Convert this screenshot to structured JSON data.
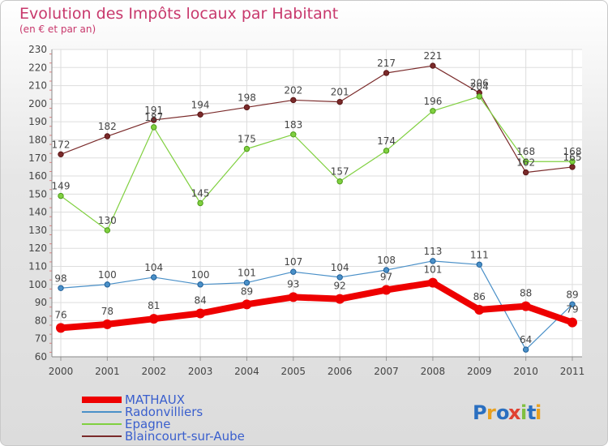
{
  "chart_data": {
    "type": "line",
    "title": "Evolution des Impôts locaux par Habitant",
    "subtitle": "(en € et par an)",
    "x": [
      "2000",
      "2001",
      "2002",
      "2003",
      "2004",
      "2005",
      "2006",
      "2007",
      "2008",
      "2009",
      "2010",
      "2011"
    ],
    "ylim": [
      60,
      230
    ],
    "yticks": [
      60,
      70,
      80,
      90,
      100,
      110,
      120,
      130,
      140,
      150,
      160,
      170,
      180,
      190,
      200,
      210,
      220,
      230
    ],
    "grid": true,
    "legend_position": "bottom-left",
    "series": [
      {
        "name": "MATHAUX",
        "color": "#ee0000",
        "values": [
          76,
          78,
          81,
          84,
          89,
          93,
          92,
          97,
          101,
          86,
          88,
          79
        ]
      },
      {
        "name": "Radonvilliers",
        "color": "#4a90c8",
        "values": [
          98,
          100,
          104,
          100,
          101,
          107,
          104,
          108,
          113,
          111,
          64,
          89
        ]
      },
      {
        "name": "Epagne",
        "color": "#80d040",
        "values": [
          149,
          130,
          187,
          145,
          175,
          183,
          157,
          174,
          196,
          204,
          168,
          168
        ]
      },
      {
        "name": "Blaincourt-sur-Aube",
        "color": "#7a2a2a",
        "values": [
          172,
          182,
          191,
          194,
          198,
          202,
          201,
          217,
          221,
          206,
          162,
          165
        ]
      }
    ]
  },
  "watermark": "Proxiti"
}
